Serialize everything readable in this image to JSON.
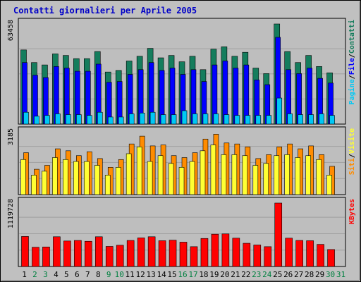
{
  "chart_data": {
    "type": "bar",
    "title": "Contatti giornalieri per Aprile 2005",
    "categories": [
      "1",
      "2",
      "3",
      "4",
      "5",
      "6",
      "7",
      "8",
      "9",
      "10",
      "11",
      "12",
      "13",
      "14",
      "15",
      "16",
      "17",
      "18",
      "19",
      "20",
      "21",
      "22",
      "23",
      "24",
      "25",
      "26",
      "27",
      "28",
      "29",
      "30",
      "31"
    ],
    "weekend_days": [
      "2",
      "3",
      "9",
      "10",
      "16",
      "17",
      "23",
      "24",
      "30",
      "31"
    ],
    "colors": {
      "background": "#c0c0c0",
      "panel": "#bebebe",
      "grid": "#a0a0a0",
      "title": "#0000c8",
      "weekday_label": "#000000",
      "weekend_label": "#008040",
      "hits": "#157d5d",
      "files": "#0000ff",
      "pages": "#00c8f5",
      "visits": "#ff8c00",
      "sites": "#ffff33",
      "kbytes": "#ff0000"
    },
    "panels": [
      {
        "id": "hits",
        "ymax_label": "63458",
        "ylim": [
          0,
          63458
        ],
        "legend": [
          {
            "name": "Pagine",
            "color": "#00c8f5"
          },
          {
            "name": "File",
            "color": "#0000ff"
          },
          {
            "name": "Contatti",
            "color": "#157d5d"
          }
        ],
        "series": [
          {
            "name": "Contatti",
            "values": [
              47000,
              39000,
              37500,
              44500,
              43500,
              41500,
              41500,
              46000,
              33000,
              34000,
              40000,
              43000,
              48000,
              42000,
              43500,
              39500,
              43000,
              34500,
              47500,
              49000,
              43000,
              45500,
              35500,
              32000,
              63458,
              46000,
              39000,
              43500,
              36500,
              32500,
              0
            ]
          },
          {
            "name": "File",
            "values": [
              39000,
              31000,
              29500,
              36500,
              35500,
              33500,
              33500,
              38000,
              26500,
              27000,
              31500,
              34500,
              39000,
              34000,
              35500,
              31500,
              34500,
              27000,
              37500,
              40000,
              35500,
              37500,
              28000,
              25000,
              55000,
              34500,
              32000,
              35500,
              29000,
              26000,
              0
            ]
          },
          {
            "name": "Pagine",
            "values": [
              7500,
              5000,
              5500,
              6500,
              6000,
              6000,
              5500,
              7500,
              4500,
              4500,
              6500,
              7000,
              7500,
              6000,
              6000,
              8500,
              6500,
              6500,
              6500,
              6000,
              5500,
              5500,
              5500,
              5500,
              16500,
              6500,
              6000,
              6000,
              6500,
              5500,
              0
            ]
          }
        ]
      },
      {
        "id": "visits",
        "ymax_label": "3185",
        "ylim": [
          0,
          3185
        ],
        "legend": [
          {
            "name": "Siti",
            "color": "#ff8c00"
          },
          {
            "name": "Visite",
            "color": "#ffff33"
          }
        ],
        "series": [
          {
            "name": "Visite",
            "values": [
              2150,
              1300,
              1500,
              2350,
              2250,
              2000,
              2200,
              1850,
              1400,
              1800,
              2600,
              3000,
              2500,
              2550,
              2000,
              1900,
              2150,
              2850,
              3100,
              2650,
              2600,
              2450,
              1850,
              2050,
              2450,
              2600,
              2350,
              2500,
              2050,
              1450,
              0
            ]
          },
          {
            "name": "Siti",
            "values": [
              1800,
              1000,
              1200,
              1900,
              1800,
              1700,
              1700,
              1500,
              1000,
              1400,
              2100,
              2450,
              1700,
              2000,
              1600,
              1400,
              1700,
              2250,
              2550,
              2050,
              2050,
              2000,
              1500,
              1600,
              2000,
              2050,
              1900,
              2000,
              1800,
              1000,
              0
            ]
          }
        ]
      },
      {
        "id": "kbytes",
        "ymax_label": "1119728",
        "ylim": [
          0,
          1119728
        ],
        "legend": [
          {
            "name": "KBytes",
            "color": "#ff0000"
          }
        ],
        "series": [
          {
            "name": "KBytes",
            "values": [
              530000,
              340000,
              345000,
              525000,
              450000,
              460000,
              445000,
              525000,
              355000,
              375000,
              460000,
              505000,
              525000,
              455000,
              465000,
              430000,
              350000,
              495000,
              570000,
              575000,
              500000,
              410000,
              380000,
              350000,
              1119728,
              500000,
              460000,
              455000,
              390000,
              300000,
              0
            ]
          }
        ]
      }
    ]
  }
}
